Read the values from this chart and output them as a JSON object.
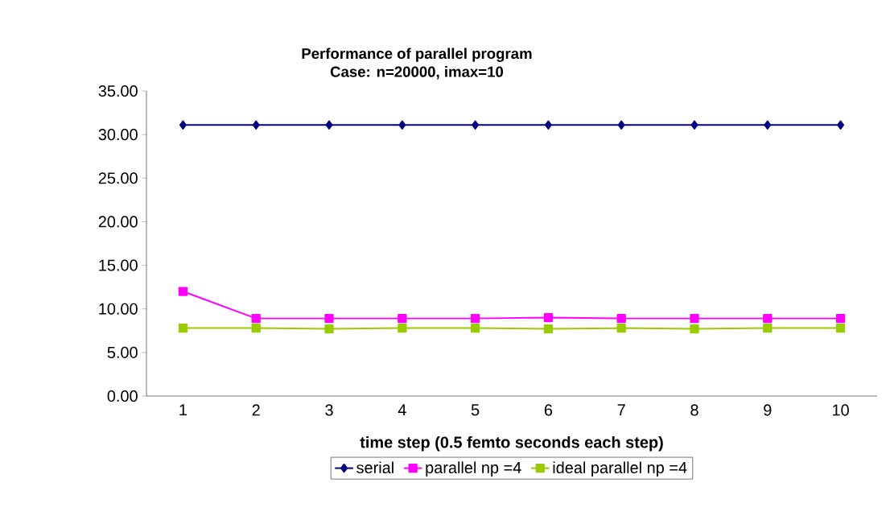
{
  "chart_data": {
    "type": "line",
    "title": "Performance of parallel program\nCase: n=20000, imax=10",
    "xlabel": "time step (0.5 femto seconds each step)",
    "categories": [
      "1",
      "2",
      "3",
      "4",
      "5",
      "6",
      "7",
      "8",
      "9",
      "10"
    ],
    "series": [
      {
        "name": "serial",
        "color": "#000080",
        "marker": "diamond",
        "values": [
          31.1,
          31.1,
          31.1,
          31.1,
          31.1,
          31.1,
          31.1,
          31.1,
          31.1,
          31.1
        ]
      },
      {
        "name": "parallel np =4",
        "color": "#ff00ff",
        "marker": "square",
        "values": [
          12,
          8.9,
          8.9,
          8.9,
          8.9,
          9,
          8.9,
          8.9,
          8.9,
          8.9
        ]
      },
      {
        "name": "ideal parallel np =4",
        "color": "#99cc00",
        "marker": "square",
        "values": [
          7.8,
          7.8,
          7.7,
          7.8,
          7.8,
          7.7,
          7.8,
          7.7,
          7.8,
          7.8
        ]
      }
    ],
    "ylim": [
      0,
      35
    ],
    "yticks": [
      {
        "value": 0,
        "label": "0.00"
      },
      {
        "value": 5,
        "label": "5.00"
      },
      {
        "value": 10,
        "label": "10.00"
      },
      {
        "value": 15,
        "label": "15.00"
      },
      {
        "value": 20,
        "label": "20.00"
      },
      {
        "value": 25,
        "label": "25.00"
      },
      {
        "value": 30,
        "label": "30.00"
      },
      {
        "value": 35,
        "label": "35.00"
      }
    ],
    "grid": false,
    "legend": "bottom"
  }
}
